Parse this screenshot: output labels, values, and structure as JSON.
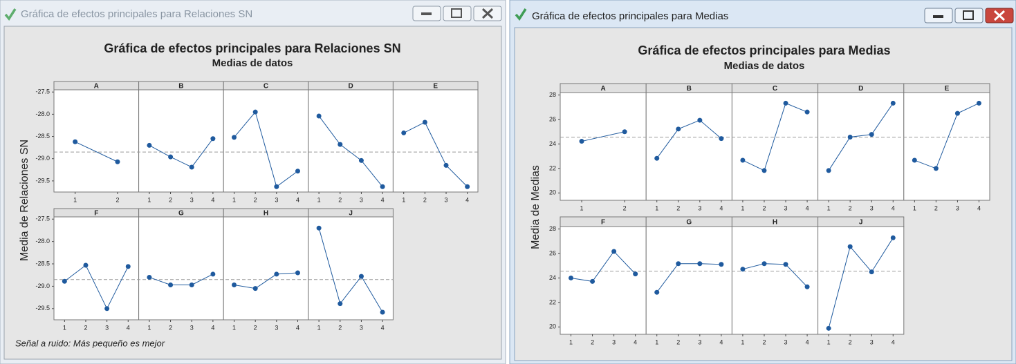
{
  "windows": [
    {
      "title": "Gráfica de efectos principales para Relaciones SN"
    },
    {
      "title": "Gráfica de efectos principales para Medias"
    }
  ],
  "chart_data": [
    {
      "type": "line",
      "title": "Gráfica de efectos principales para Relaciones SN",
      "subtitle": "Medias de datos",
      "ylabel": "Media de Relaciones SN",
      "footnote": "Señal a ruido: Más pequeño es mejor",
      "color": "#1f5a9e",
      "reference": -28.85,
      "ylim": [
        -29.75,
        -27.45
      ],
      "yticks": [
        -27.5,
        {
          "value": -28,
          "label": "-28.0"
        },
        -28.5,
        {
          "value": -29,
          "label": "-29.0"
        },
        -29.5
      ],
      "panels": [
        {
          "name": "A",
          "categories": [
            "1",
            "2"
          ],
          "values": [
            -28.62,
            -29.07
          ]
        },
        {
          "name": "B",
          "categories": [
            "1",
            "2",
            "3",
            "4"
          ],
          "values": [
            -28.7,
            -28.96,
            -29.19,
            -28.55
          ]
        },
        {
          "name": "C",
          "categories": [
            "1",
            "2",
            "3",
            "4"
          ],
          "values": [
            -28.52,
            -27.95,
            -29.63,
            -29.28
          ]
        },
        {
          "name": "D",
          "categories": [
            "1",
            "2",
            "3",
            "4"
          ],
          "values": [
            -28.04,
            -28.68,
            -29.04,
            -29.63
          ]
        },
        {
          "name": "E",
          "categories": [
            "1",
            "2",
            "3",
            "4"
          ],
          "values": [
            -28.42,
            -28.18,
            -29.15,
            -29.63
          ]
        },
        {
          "name": "F",
          "categories": [
            "1",
            "2",
            "3",
            "4"
          ],
          "values": [
            -28.89,
            -28.53,
            -29.5,
            -28.56
          ]
        },
        {
          "name": "G",
          "categories": [
            "1",
            "2",
            "3",
            "4"
          ],
          "values": [
            -28.8,
            -28.97,
            -28.97,
            -28.73
          ]
        },
        {
          "name": "H",
          "categories": [
            "1",
            "2",
            "3",
            "4"
          ],
          "values": [
            -28.97,
            -29.05,
            -28.73,
            -28.7
          ]
        },
        {
          "name": "J",
          "categories": [
            "1",
            "2",
            "3",
            "4"
          ],
          "values": [
            -27.7,
            -29.39,
            -28.78,
            -29.58
          ]
        }
      ]
    },
    {
      "type": "line",
      "title": "Gráfica de efectos principales para Medias",
      "subtitle": "Medias de datos",
      "ylabel": "Media de Medias",
      "color": "#1f5a9e",
      "reference": 24.56,
      "ylim": [
        19.4,
        28.2
      ],
      "yticks": [
        20,
        22,
        24,
        26,
        28
      ],
      "panels": [
        {
          "name": "A",
          "categories": [
            "1",
            "2"
          ],
          "values": [
            24.22,
            25.0
          ]
        },
        {
          "name": "B",
          "categories": [
            "1",
            "2",
            "3",
            "4"
          ],
          "values": [
            22.83,
            25.22,
            25.94,
            24.44
          ]
        },
        {
          "name": "C",
          "categories": [
            "1",
            "2",
            "3",
            "4"
          ],
          "values": [
            22.67,
            21.83,
            27.33,
            26.61
          ]
        },
        {
          "name": "D",
          "categories": [
            "1",
            "2",
            "3",
            "4"
          ],
          "values": [
            21.83,
            24.56,
            24.78,
            27.33
          ]
        },
        {
          "name": "E",
          "categories": [
            "1",
            "2",
            "3",
            "4"
          ],
          "values": [
            22.67,
            22.0,
            26.5,
            27.33
          ]
        },
        {
          "name": "F",
          "categories": [
            "1",
            "2",
            "3",
            "4"
          ],
          "values": [
            24.0,
            23.72,
            26.17,
            24.33
          ]
        },
        {
          "name": "G",
          "categories": [
            "1",
            "2",
            "3",
            "4"
          ],
          "values": [
            22.83,
            25.17,
            25.17,
            25.11
          ]
        },
        {
          "name": "H",
          "categories": [
            "1",
            "2",
            "3",
            "4"
          ],
          "values": [
            24.72,
            25.17,
            25.11,
            23.28
          ]
        },
        {
          "name": "J",
          "categories": [
            "1",
            "2",
            "3",
            "4"
          ],
          "values": [
            19.89,
            26.56,
            24.5,
            27.28
          ]
        }
      ]
    }
  ]
}
